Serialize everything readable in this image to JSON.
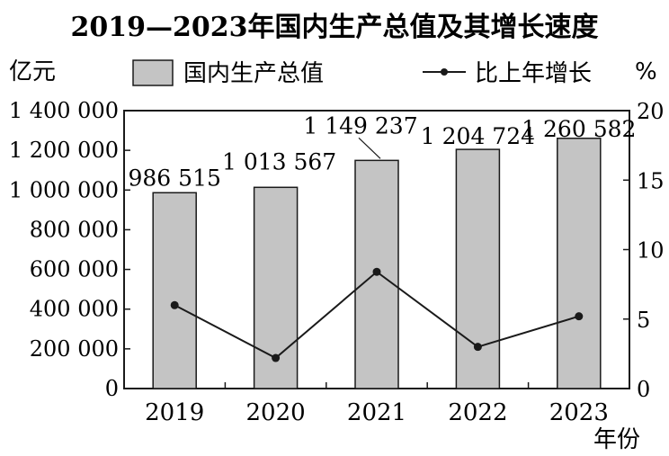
{
  "chart_data": {
    "type": "bar+line",
    "title": "2019—2023年国内生产总值及其增长速度",
    "categories": [
      "2019",
      "2020",
      "2021",
      "2022",
      "2023"
    ],
    "left_axis": {
      "unit": "亿元",
      "range": [
        0,
        1400000
      ],
      "ticks": [
        0,
        200000,
        400000,
        600000,
        800000,
        1000000,
        1200000,
        1400000
      ],
      "tick_labels": [
        "0",
        "200 000",
        "400 000",
        "600 000",
        "800 000",
        "1 000 000",
        "1 200 000",
        "1 400 000"
      ]
    },
    "right_axis": {
      "unit": "%",
      "range": [
        0,
        20
      ],
      "ticks": [
        0,
        5,
        10,
        15,
        20
      ],
      "tick_labels": [
        "0",
        "5",
        "10",
        "15",
        "20"
      ]
    },
    "xlabel": "年份",
    "series": [
      {
        "name": "国内生产总值",
        "type": "bar",
        "axis": "left",
        "color": "#c4c4c4",
        "values": [
          986515,
          1013567,
          1149237,
          1204724,
          1260582
        ],
        "data_labels": [
          "986 515",
          "1 013 567",
          "1 149 237",
          "1 204 724",
          "1 260 582"
        ]
      },
      {
        "name": "比上年增长",
        "type": "line",
        "axis": "right",
        "color": "#1a1a1a",
        "values": [
          6.0,
          2.2,
          8.4,
          3.0,
          5.2
        ]
      }
    ],
    "legend_position": "top"
  }
}
